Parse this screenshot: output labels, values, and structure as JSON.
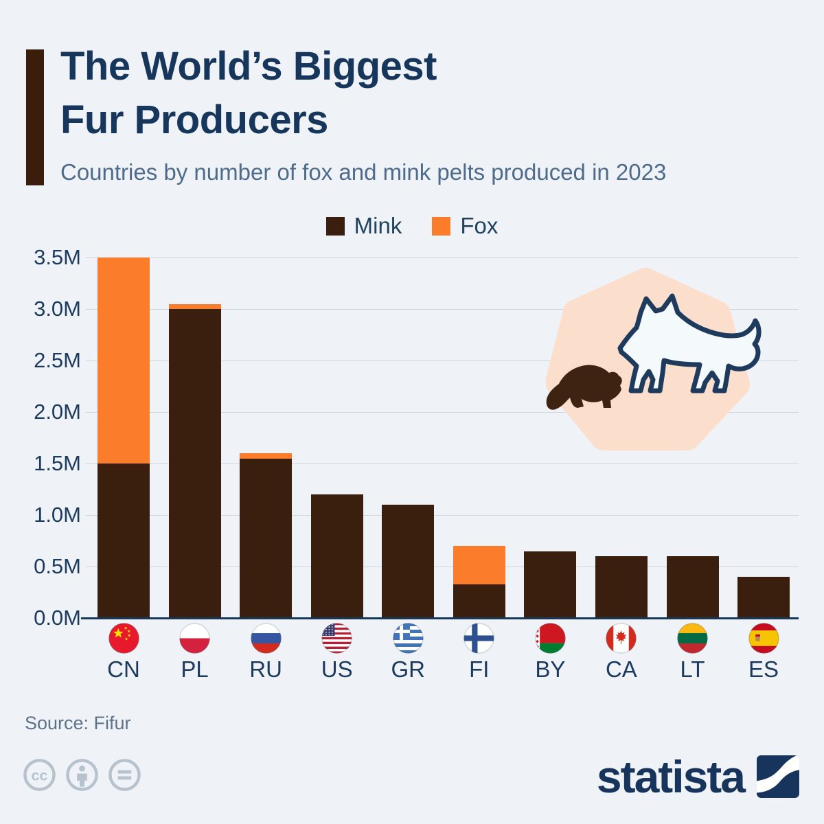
{
  "colors": {
    "background": "#EFF3F8",
    "navy": "#17365C",
    "subtitle_text": "#4E6B8C",
    "mink": "#3B1F0E",
    "fox": "#FB7C2B",
    "gridline": "#CDD3DA",
    "axis_line": "#17365C",
    "source_text": "#5D7288",
    "license_gray": "#B7C2CD",
    "blob_peach": "#FBDFCC"
  },
  "header": {
    "title_line1": "The World’s Biggest",
    "title_line2": "Fur Producers",
    "subtitle": "Countries by number of fox and mink pelts produced in 2023"
  },
  "legend": {
    "items": [
      {
        "label": "Mink",
        "color": "#3B1F0E"
      },
      {
        "label": "Fox",
        "color": "#FB7C2B"
      }
    ]
  },
  "chart_data": {
    "type": "bar",
    "stacked": true,
    "title": "The World’s Biggest Fur Producers",
    "subtitle": "Countries by number of fox and mink pelts produced in 2023",
    "categories": [
      "CN",
      "PL",
      "RU",
      "US",
      "GR",
      "FI",
      "BY",
      "CA",
      "LT",
      "ES"
    ],
    "series": [
      {
        "name": "Mink",
        "color": "#3B1F0E",
        "values": [
          1.5,
          3.0,
          1.55,
          1.2,
          1.1,
          0.33,
          0.65,
          0.6,
          0.6,
          0.4
        ]
      },
      {
        "name": "Fox",
        "color": "#FB7C2B",
        "values": [
          2.0,
          0.05,
          0.05,
          0,
          0,
          0.37,
          0,
          0,
          0,
          0
        ]
      }
    ],
    "totals": [
      3.5,
      3.05,
      1.6,
      1.2,
      1.1,
      0.7,
      0.65,
      0.6,
      0.6,
      0.4
    ],
    "unit": "millions of pelts",
    "xlabel": "",
    "ylabel": "",
    "ylim": [
      0,
      3.5
    ],
    "ytick_step": 0.5,
    "ytick_labels": [
      "0.0M",
      "0.5M",
      "1.0M",
      "1.5M",
      "2.0M",
      "2.5M",
      "3.0M",
      "3.5M"
    ],
    "grid": "horizontal",
    "legend_position": "top"
  },
  "decoration": {
    "shapes": [
      "mink-silhouette-icon",
      "fox-outline-icon"
    ],
    "blob_color": "#FBDFCC"
  },
  "footer": {
    "source": "Source: Fifur",
    "license_icons": [
      "cc-icon",
      "attribution-person-icon",
      "equals-icon"
    ],
    "brand_wordmark": "statista",
    "brand_mark": "statista-swoosh-icon"
  }
}
